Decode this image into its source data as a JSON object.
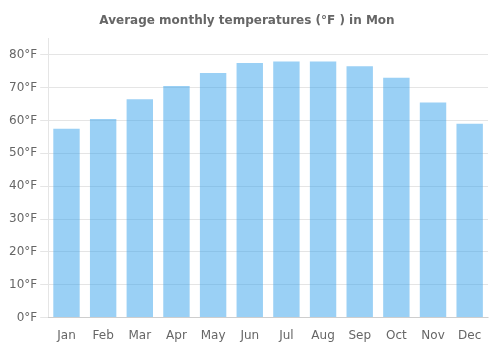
{
  "chart_data": {
    "type": "bar",
    "title": "Average monthly temperatures (°F ) in Mon",
    "categories": [
      "Jan",
      "Feb",
      "Mar",
      "Apr",
      "May",
      "Jun",
      "Jul",
      "Aug",
      "Sep",
      "Oct",
      "Nov",
      "Dec"
    ],
    "values": [
      57.5,
      60.5,
      66.5,
      70.5,
      74.5,
      77.5,
      78.0,
      78.0,
      76.5,
      73.0,
      65.5,
      59.0
    ],
    "ylim": [
      0,
      85
    ],
    "yticks": [
      {
        "value": 0,
        "label": "0°F"
      },
      {
        "value": 10,
        "label": "10°F"
      },
      {
        "value": 20,
        "label": "20°F"
      },
      {
        "value": 30,
        "label": "30°F"
      },
      {
        "value": 40,
        "label": "40°F"
      },
      {
        "value": 50,
        "label": "50°F"
      },
      {
        "value": 60,
        "label": "60°F"
      },
      {
        "value": 70,
        "label": "70°F"
      },
      {
        "value": 80,
        "label": "80°F"
      }
    ],
    "grid": true
  }
}
